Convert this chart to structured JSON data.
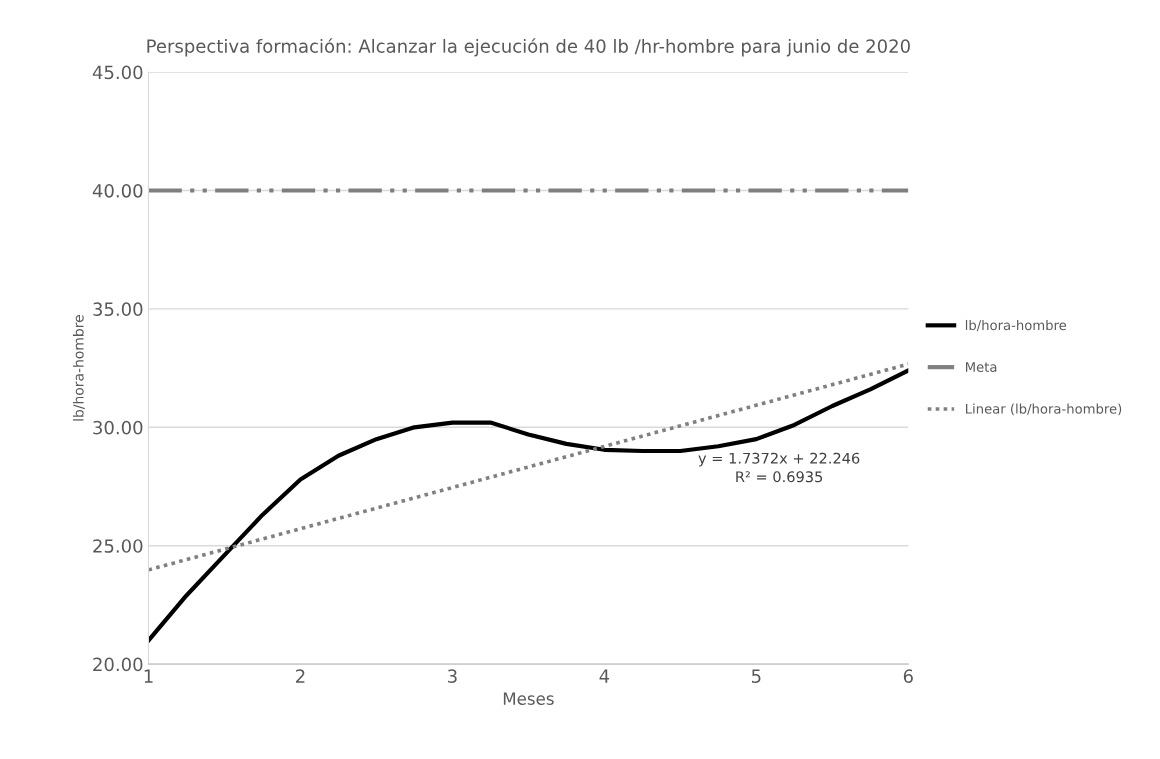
{
  "chart_data": {
    "type": "line",
    "title": "Perspectiva formación: Alcanzar la ejecución de 40 lb /hr-hombre para junio de 2020",
    "xlabel": "Meses",
    "ylabel": "lb/hora-hombre",
    "series": [
      {
        "name": "lb/hora-hombre",
        "color": "#000000",
        "x": [
          1,
          1.25,
          1.5,
          1.75,
          2,
          2.25,
          2.5,
          2.75,
          3,
          3.25,
          3.5,
          3.75,
          4,
          4.25,
          4.5,
          4.75,
          5,
          5.25,
          5.5,
          5.75,
          6
        ],
        "values": [
          21.0,
          22.9,
          24.6,
          26.3,
          27.8,
          28.8,
          29.5,
          30.0,
          30.2,
          30.2,
          29.7,
          29.3,
          29.05,
          29.0,
          29.0,
          29.2,
          29.5,
          30.1,
          30.9,
          31.6,
          32.4
        ],
        "line_style": "solid"
      },
      {
        "name": "Meta",
        "color": "#7f7f7f",
        "x": [
          1,
          6
        ],
        "values": [
          40,
          40
        ],
        "line_style": "dashdotdot"
      },
      {
        "name": "Linear (lb/hora-hombre)",
        "color": "#808080",
        "x": [
          1,
          6
        ],
        "values": [
          23.98,
          32.67
        ],
        "line_style": "dotted"
      }
    ],
    "annotations": [
      "y = 1.7372x + 22.246\nR² = 0.6935"
    ],
    "xlim": [
      1,
      6
    ],
    "xticks": [
      1,
      2,
      3,
      4,
      5,
      6
    ],
    "ylim": [
      20,
      45
    ],
    "yticks": [
      {
        "value": 20,
        "label": "20.00"
      },
      {
        "value": 25,
        "label": "25.00"
      },
      {
        "value": 30,
        "label": "30.00"
      },
      {
        "value": 35,
        "label": "35.00"
      },
      {
        "value": 40,
        "label": "40.00"
      },
      {
        "value": 45,
        "label": "45.00"
      }
    ],
    "grid": "y",
    "legend": "right",
    "marker": "none"
  }
}
